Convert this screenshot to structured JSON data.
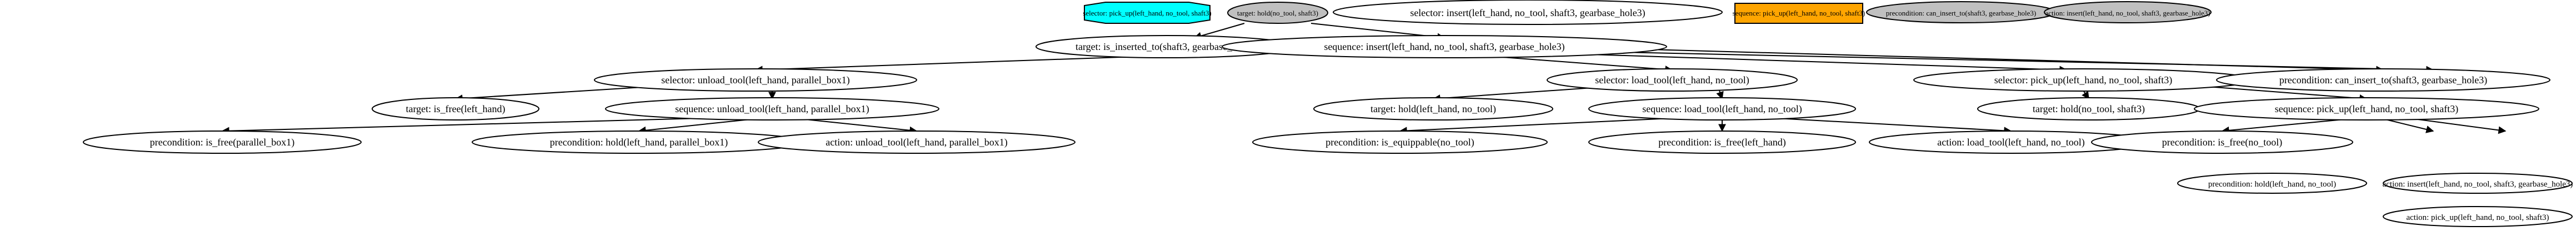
{
  "legend": {
    "selector_active": "selector: pick_up(left_hand, no_tool, shaft3)",
    "target_done": "target: hold(no_tool, shaft3)",
    "sequence_active": "sequence: pick_up(left_hand, no_tool, shaft3)",
    "precondition_done": "precondition: can_insert_to(shaft3, gearbase_hole3)",
    "action_done": "action: insert(left_hand, no_tool, shaft3, gearbase_hole3)"
  },
  "tree": {
    "root": "selector: insert(left_hand, no_tool, shaft3, gearbase_hole3)",
    "root_target": "target: is_inserted_to(shaft3, gearbase_hole3)",
    "root_sequence": "sequence: insert(left_hand, no_tool, shaft3, gearbase_hole3)",
    "unload_selector": "selector: unload_tool(left_hand, parallel_box1)",
    "load_selector": "selector: load_tool(left_hand, no_tool)",
    "pick_selector": "selector: pick_up(left_hand, no_tool, shaft3)",
    "insert_precondition": "precondition: can_insert_to(shaft3, gearbase_hole3)",
    "insert_action": "action: insert(left_hand, no_tool, shaft3, gearbase_hole3)",
    "unload_target": "target: is_free(left_hand)",
    "unload_sequence": "sequence: unload_tool(left_hand, parallel_box1)",
    "load_target": "target: hold(left_hand, no_tool)",
    "load_sequence": "sequence: load_tool(left_hand, no_tool)",
    "pick_target": "target: hold(no_tool, shaft3)",
    "pick_sequence": "sequence: pick_up(left_hand, no_tool, shaft3)",
    "unload_pre1": "precondition: is_free(parallel_box1)",
    "unload_pre2": "precondition: hold(left_hand, parallel_box1)",
    "unload_action": "action: unload_tool(left_hand, parallel_box1)",
    "load_pre1": "precondition: is_equippable(no_tool)",
    "load_pre2": "precondition: is_free(left_hand)",
    "load_action": "action: load_tool(left_hand, no_tool)",
    "pick_pre1": "precondition: is_free(no_tool)",
    "pick_pre2": "precondition: hold(left_hand, no_tool)",
    "pick_action": "action: pick_up(left_hand, no_tool, shaft3)"
  },
  "colors": {
    "selector_active_fill": "#00ffff",
    "target_done_fill": "#c0c0c0",
    "sequence_active_fill": "#ffa500",
    "precondition_done_fill": "#c0c0c0",
    "action_done_fill": "#c0c0c0",
    "default_fill": "#ffffff",
    "stroke": "#000000"
  }
}
